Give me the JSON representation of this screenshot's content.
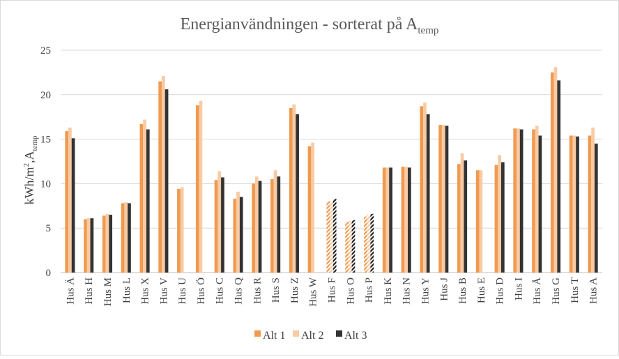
{
  "chart_data": {
    "type": "bar",
    "title_main": "Energianvändningen - sorterat på A",
    "title_sub": "temp",
    "ylabel_main": "kWh/m",
    "ylabel_sup": "2",
    "ylabel_mid": ",A",
    "ylabel_sub": "temp",
    "ylim": [
      0,
      25
    ],
    "yticks": [
      "0",
      "5",
      "10",
      "15",
      "20",
      "25"
    ],
    "ytick_values": [
      0,
      5,
      10,
      15,
      20,
      25
    ],
    "grid": true,
    "legend_position": "bottom",
    "categories": [
      "Hus Ä",
      "Hus H",
      "Hus M",
      "Hus L",
      "Hus X",
      "Hus V",
      "Hus U",
      "Hus Ö",
      "Hus C",
      "Hus Q",
      "Hus R",
      "Hus S",
      "Hus Z",
      "Hus W",
      "Hus F",
      "Hus O",
      "Hus P",
      "Hus K",
      "Hus N",
      "Hus Y",
      "Hus J",
      "Hus B",
      "Hus E",
      "Hus D",
      "Hus I",
      "Hus Å",
      "Hus G",
      "Hus T",
      "Hus A"
    ],
    "hatched_categories": [
      "Hus F",
      "Hus O",
      "Hus P"
    ],
    "series": [
      {
        "name": "Alt 1",
        "color": "#F09A50",
        "values": [
          15.9,
          6.0,
          6.4,
          7.8,
          16.7,
          21.5,
          9.4,
          18.8,
          10.4,
          8.3,
          10.0,
          10.5,
          18.5,
          14.2,
          8.0,
          5.7,
          6.3,
          11.8,
          11.9,
          18.7,
          16.6,
          12.2,
          11.5,
          12.1,
          16.2,
          16.1,
          22.5,
          15.4,
          15.4
        ]
      },
      {
        "name": "Alt 2",
        "color": "#F8CBA4",
        "values": [
          16.3,
          6.1,
          6.6,
          7.9,
          17.2,
          22.1,
          9.6,
          19.3,
          11.4,
          9.1,
          10.8,
          11.5,
          18.9,
          14.6,
          8.0,
          5.8,
          6.5,
          11.8,
          11.9,
          19.1,
          16.6,
          13.4,
          11.5,
          13.2,
          16.2,
          16.5,
          23.1,
          15.4,
          16.3
        ]
      },
      {
        "name": "Alt 3",
        "color": "#333333",
        "values": [
          15.1,
          6.1,
          6.5,
          7.8,
          16.1,
          20.6,
          null,
          null,
          10.7,
          8.5,
          10.3,
          10.8,
          17.8,
          null,
          8.3,
          5.9,
          6.6,
          11.8,
          11.8,
          17.8,
          16.5,
          12.6,
          null,
          12.4,
          16.1,
          15.4,
          21.6,
          15.3,
          14.5
        ]
      }
    ]
  }
}
